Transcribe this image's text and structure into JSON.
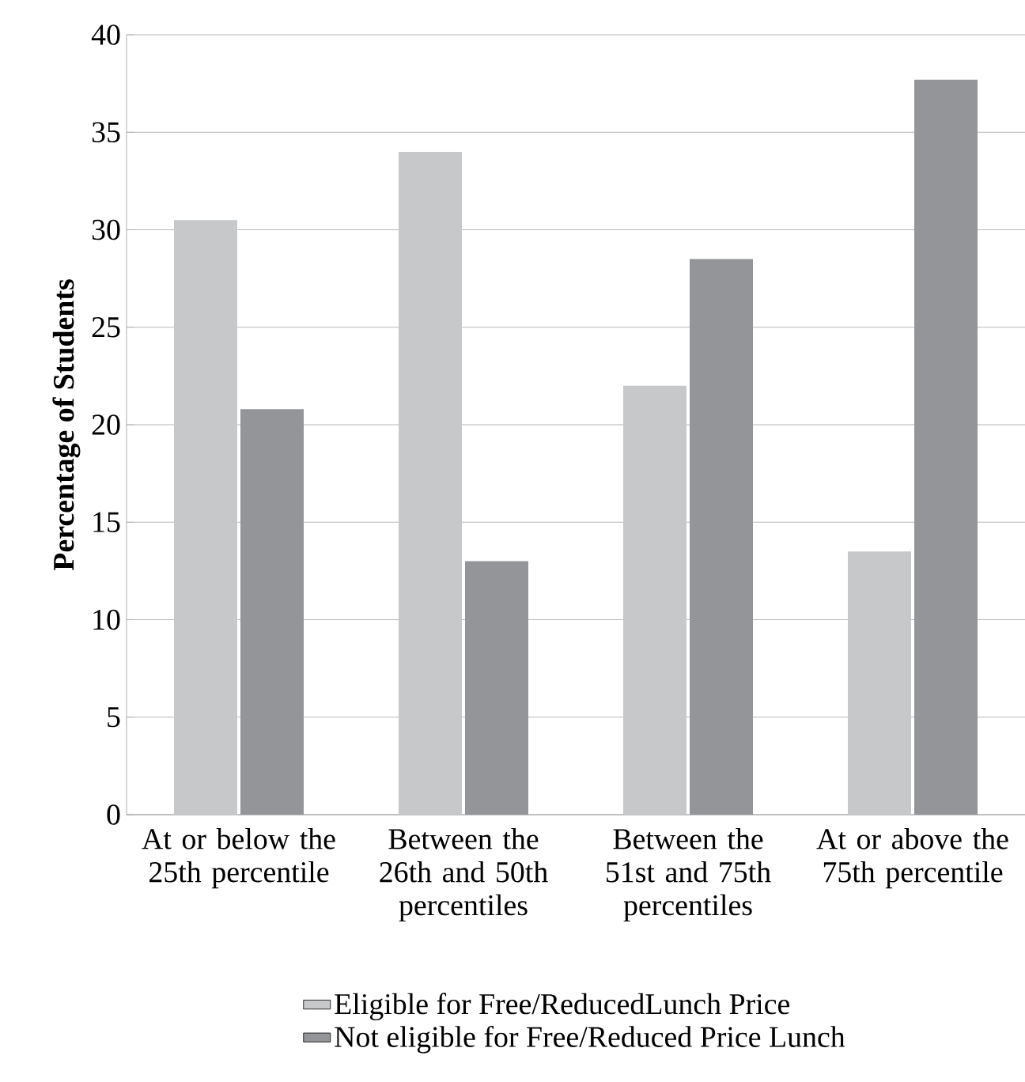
{
  "chart_data": {
    "type": "bar",
    "ylabel": "Percentage of Students",
    "categories": [
      "At or below the 25th percentile",
      "Between the 26th and 50th percentiles",
      "Between the 51st and 75th percentiles",
      "At or above the 75th percentile"
    ],
    "series": [
      {
        "name": "Eligible for Free/ReducedLunch Price",
        "color": "#c7c8ca",
        "values": [
          30.5,
          34.0,
          22.0,
          13.5
        ]
      },
      {
        "name": "Not eligible for Free/Reduced Price Lunch",
        "color": "#939598",
        "values": [
          20.8,
          13.0,
          28.5,
          37.7
        ]
      }
    ],
    "ylim": [
      0,
      40
    ],
    "yticks": [
      0,
      5,
      10,
      15,
      20,
      25,
      30,
      35,
      40
    ],
    "grid": "y",
    "legend": "bottom"
  }
}
